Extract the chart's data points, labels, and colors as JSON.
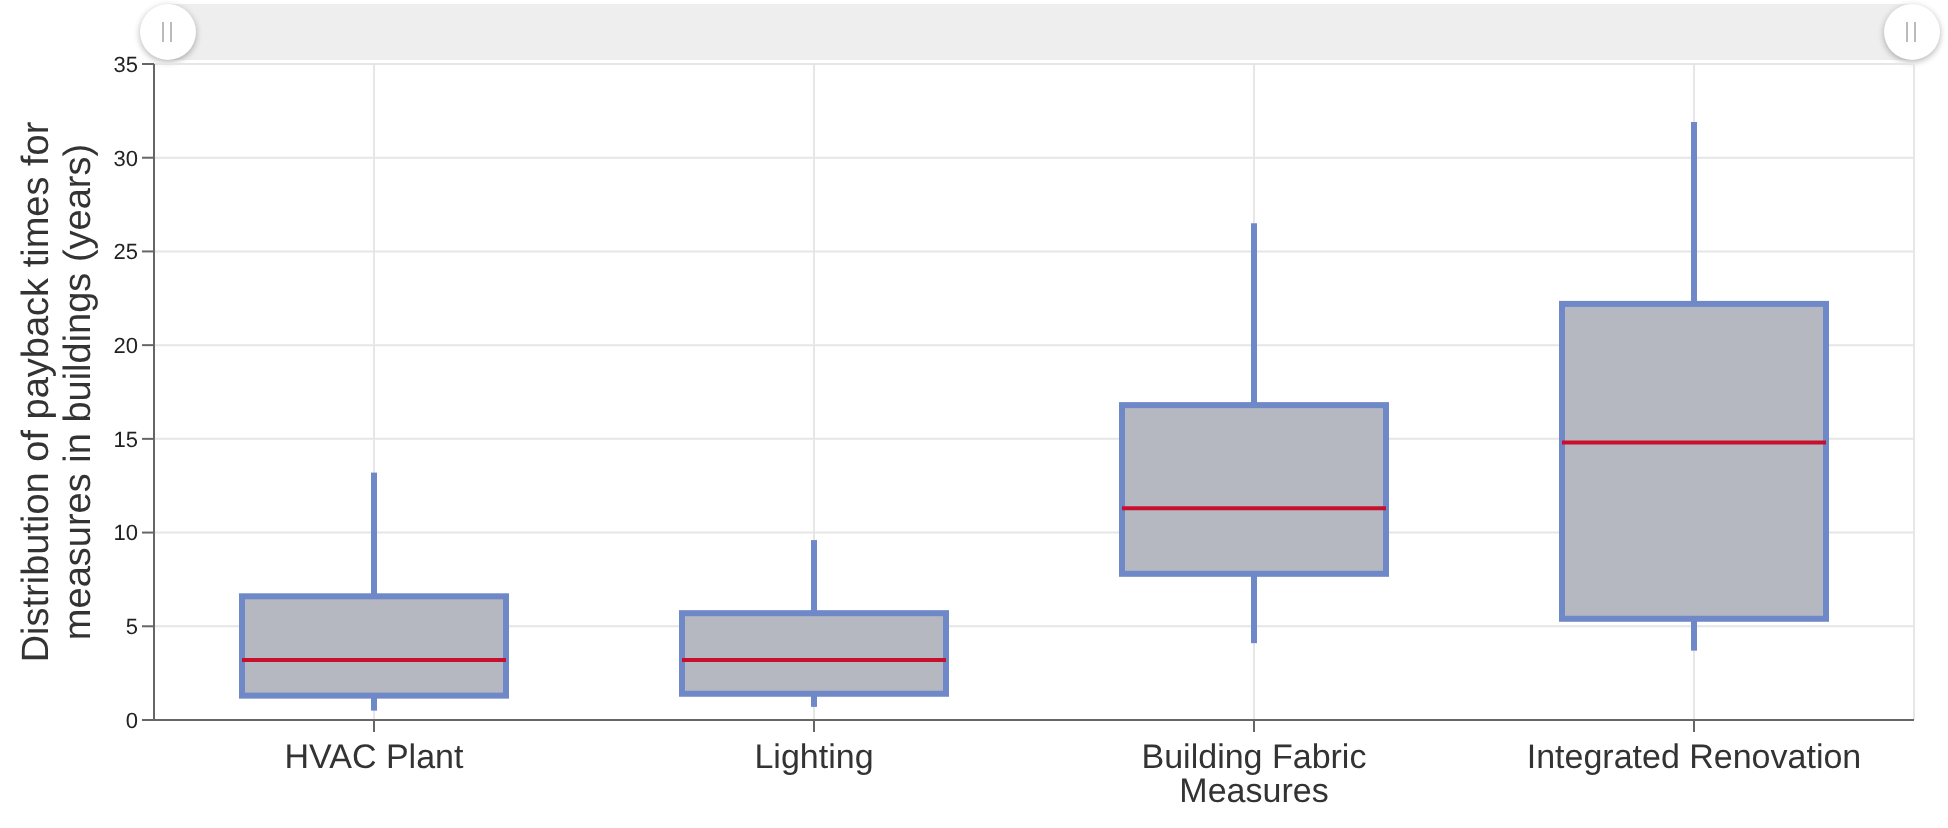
{
  "chart_data": {
    "type": "box",
    "ylabel": "Distribution of payback times for measures in buildings (years)",
    "categories": [
      "HVAC Plant",
      "Lighting",
      "Building Fabric Measures",
      "Integrated Renovation"
    ],
    "series": [
      {
        "color": "#6f88c8",
        "boxes": [
          {
            "low": 0.5,
            "q1": 1.3,
            "median": 3.2,
            "q3": 6.6,
            "high": 13.2
          },
          {
            "low": 0.7,
            "q1": 1.4,
            "median": 3.2,
            "q3": 5.7,
            "high": 9.6
          },
          {
            "low": 4.1,
            "q1": 7.8,
            "median": 11.3,
            "q3": 16.8,
            "high": 26.5
          },
          {
            "low": 3.7,
            "q1": 5.4,
            "median": 14.8,
            "q3": 22.2,
            "high": 31.9
          }
        ]
      }
    ],
    "ylim": [
      0,
      35
    ],
    "yticks": [
      0,
      5,
      10,
      15,
      20,
      25,
      30,
      35
    ],
    "grid": true
  }
}
